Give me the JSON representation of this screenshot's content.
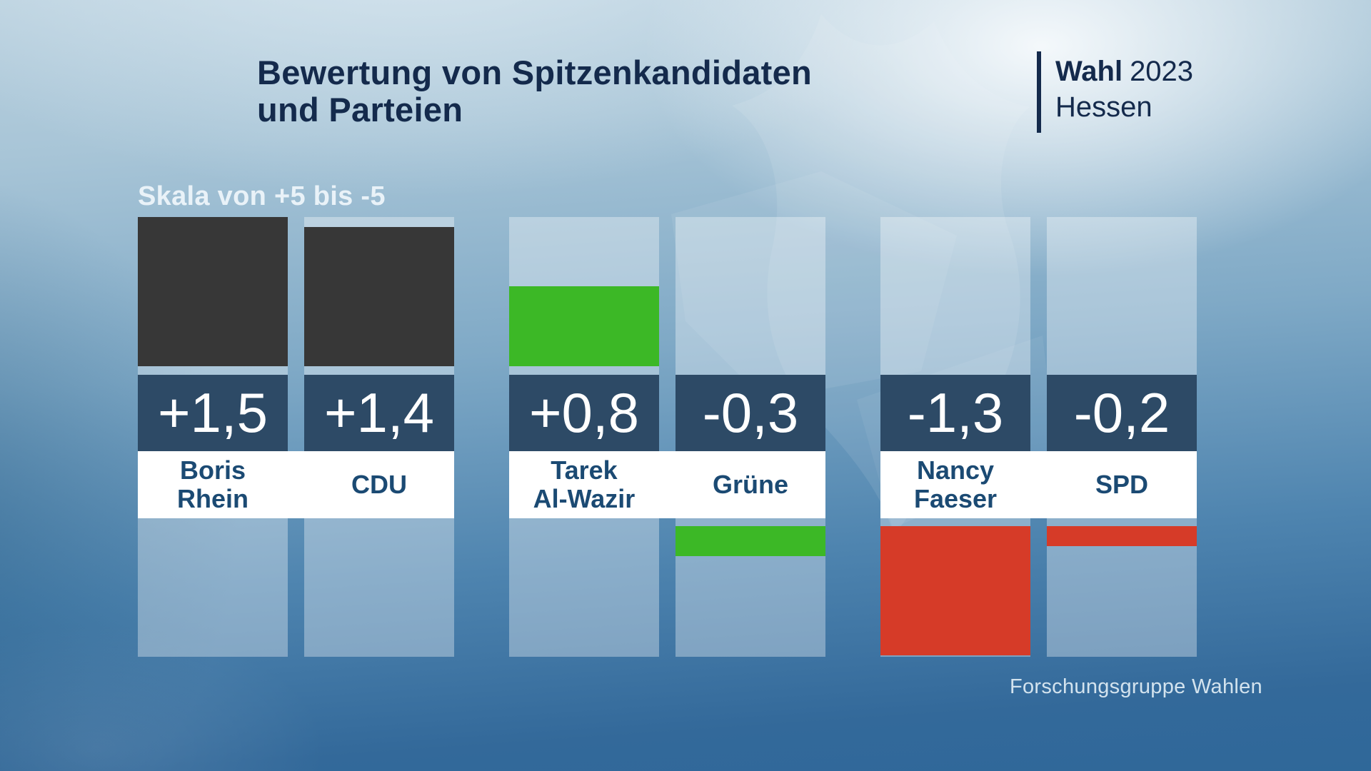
{
  "header": {
    "title_line1": "Bewertung von Spitzenkandidaten",
    "title_line2": "und Parteien"
  },
  "badge": {
    "program": "Wahl",
    "year": "2023",
    "region": "Hessen"
  },
  "scale_note": "Skala von +5 bis -5",
  "source": "Forschungsgruppe Wahlen",
  "colors": {
    "title_text": "#142a4c",
    "scale_note_text": "#e9f2f8",
    "value_band": "#2d4a66",
    "value_text": "#ffffff",
    "label_band": "#ffffff",
    "label_text": "#1b4a73",
    "bar_dark": "#373737",
    "bar_green": "#3cb826",
    "bar_red": "#d63b28",
    "column_background": "rgba(255,255,255,0.34)",
    "source_text": "#d3e3ee"
  },
  "chart_data": {
    "type": "bar",
    "title": "Bewertung von Spitzenkandidaten und Parteien",
    "scale_label": "Skala von +5 bis -5",
    "ylim": [
      -5,
      5
    ],
    "source": "Forschungsgruppe Wahlen",
    "groups": [
      {
        "items": [
          {
            "label": "Boris Rhein",
            "label_lines": [
              "Boris",
              "Rhein"
            ],
            "value": 1.5,
            "display": "+1,5",
            "color": "#373737"
          },
          {
            "label": "CDU",
            "label_lines": [
              "CDU"
            ],
            "value": 1.4,
            "display": "+1,4",
            "color": "#373737"
          }
        ]
      },
      {
        "items": [
          {
            "label": "Tarek Al-Wazir",
            "label_lines": [
              "Tarek",
              "Al-Wazir"
            ],
            "value": 0.8,
            "display": "+0,8",
            "color": "#3cb826"
          },
          {
            "label": "Grüne",
            "label_lines": [
              "Grüne"
            ],
            "value": -0.3,
            "display": "-0,3",
            "color": "#3cb826"
          }
        ]
      },
      {
        "items": [
          {
            "label": "Nancy Faeser",
            "label_lines": [
              "Nancy",
              "Faeser"
            ],
            "value": -1.3,
            "display": "-1,3",
            "color": "#d63b28"
          },
          {
            "label": "SPD",
            "label_lines": [
              "SPD"
            ],
            "value": -0.2,
            "display": "-0,2",
            "color": "#d63b28"
          }
        ]
      }
    ]
  }
}
